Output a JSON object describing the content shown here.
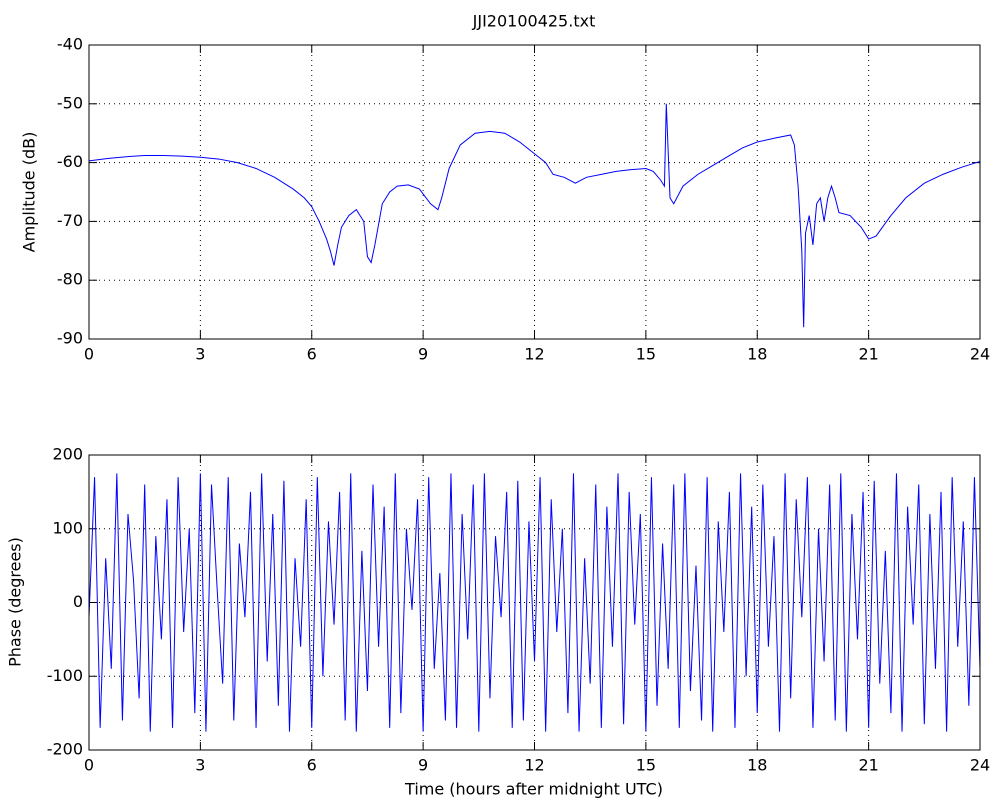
{
  "chart_data": [
    {
      "type": "line",
      "title": "JJI20100425.txt",
      "y_label": "Amplitude (dB)",
      "xlim": [
        0,
        24
      ],
      "xticks": [
        0,
        3,
        6,
        9,
        12,
        15,
        18,
        21,
        24
      ],
      "ylim": [
        -90,
        -40
      ],
      "yticks": [
        -90,
        -80,
        -70,
        -60,
        -50,
        -40
      ],
      "grid": true,
      "x": [
        0,
        0.5,
        1,
        1.5,
        2,
        2.5,
        3,
        3.5,
        4,
        4.5,
        5,
        5.5,
        5.8,
        6,
        6.2,
        6.4,
        6.5,
        6.6,
        6.7,
        6.8,
        7,
        7.2,
        7.4,
        7.5,
        7.6,
        7.7,
        7.9,
        8.1,
        8.3,
        8.6,
        8.9,
        9.2,
        9.4,
        9.5,
        9.7,
        10,
        10.4,
        10.8,
        11.2,
        11.6,
        12,
        12.3,
        12.5,
        12.8,
        13.1,
        13.4,
        13.8,
        14.2,
        14.6,
        15,
        15.2,
        15.4,
        15.5,
        15.55,
        15.6,
        15.65,
        15.75,
        16,
        16.4,
        16.8,
        17.2,
        17.6,
        18,
        18.5,
        18.9,
        19,
        19.1,
        19.2,
        19.25,
        19.3,
        19.4,
        19.5,
        19.6,
        19.7,
        19.8,
        19.9,
        20,
        20.1,
        20.2,
        20.5,
        20.8,
        21,
        21.2,
        21.6,
        22,
        22.5,
        23,
        23.5,
        24
      ],
      "series": [
        {
          "color": "#0000ff",
          "values": [
            -59.7,
            -59.3,
            -59,
            -58.8,
            -58.8,
            -58.9,
            -59.1,
            -59.4,
            -60,
            -61,
            -62.5,
            -64.5,
            -66,
            -67.5,
            -70,
            -73,
            -75,
            -77.5,
            -74,
            -71,
            -69,
            -68,
            -70,
            -76,
            -77,
            -74,
            -67,
            -65,
            -64,
            -63.8,
            -64.5,
            -67,
            -68,
            -66,
            -61,
            -57,
            -55,
            -54.7,
            -55,
            -56.5,
            -58.5,
            -60,
            -62,
            -62.5,
            -63.5,
            -62.5,
            -62,
            -61.5,
            -61.2,
            -61,
            -61.5,
            -63,
            -64,
            -50,
            -58,
            -66,
            -67,
            -64,
            -62,
            -60.5,
            -59,
            -57.5,
            -56.5,
            -55.8,
            -55.3,
            -57,
            -64,
            -75,
            -88,
            -72,
            -69,
            -74,
            -67,
            -66,
            -70,
            -66,
            -64,
            -66,
            -68.5,
            -69,
            -71,
            -73,
            -72.5,
            -69,
            -66,
            -63.5,
            -62,
            -60.8,
            -59.8
          ]
        }
      ]
    },
    {
      "type": "line",
      "x_label": "Time (hours after midnight UTC)",
      "y_label": "Phase (degrees)",
      "xlim": [
        0,
        24
      ],
      "xticks": [
        0,
        3,
        6,
        9,
        12,
        15,
        18,
        21,
        24
      ],
      "ylim": [
        -200,
        200
      ],
      "yticks": [
        -200,
        -100,
        0,
        100,
        200
      ],
      "grid": true,
      "x": [
        0,
        0.15,
        0.3,
        0.45,
        0.6,
        0.75,
        0.9,
        1.05,
        1.2,
        1.35,
        1.5,
        1.65,
        1.8,
        1.95,
        2.1,
        2.25,
        2.4,
        2.55,
        2.7,
        2.85,
        3,
        3.15,
        3.3,
        3.45,
        3.6,
        3.75,
        3.9,
        4.05,
        4.2,
        4.35,
        4.5,
        4.65,
        4.8,
        4.95,
        5.1,
        5.25,
        5.4,
        5.55,
        5.7,
        5.85,
        6,
        6.15,
        6.3,
        6.45,
        6.6,
        6.75,
        6.9,
        7.05,
        7.2,
        7.35,
        7.5,
        7.65,
        7.8,
        7.95,
        8.1,
        8.25,
        8.4,
        8.55,
        8.7,
        8.85,
        9,
        9.15,
        9.3,
        9.45,
        9.6,
        9.75,
        9.9,
        10.05,
        10.2,
        10.35,
        10.5,
        10.65,
        10.8,
        10.95,
        11.1,
        11.25,
        11.4,
        11.55,
        11.7,
        11.85,
        12,
        12.15,
        12.3,
        12.45,
        12.6,
        12.75,
        12.9,
        13.05,
        13.2,
        13.35,
        13.5,
        13.65,
        13.8,
        13.95,
        14.1,
        14.25,
        14.4,
        14.55,
        14.7,
        14.85,
        15,
        15.15,
        15.3,
        15.45,
        15.6,
        15.75,
        15.9,
        16.05,
        16.2,
        16.35,
        16.5,
        16.65,
        16.8,
        16.95,
        17.1,
        17.25,
        17.4,
        17.55,
        17.7,
        17.85,
        18,
        18.15,
        18.3,
        18.45,
        18.6,
        18.75,
        18.9,
        19.05,
        19.2,
        19.35,
        19.5,
        19.65,
        19.8,
        19.95,
        20.1,
        20.25,
        20.4,
        20.55,
        20.7,
        20.85,
        21,
        21.15,
        21.3,
        21.45,
        21.6,
        21.75,
        21.9,
        22.05,
        22.2,
        22.35,
        22.5,
        22.65,
        22.8,
        22.95,
        23.1,
        23.25,
        23.4,
        23.55,
        23.7,
        23.85,
        24
      ],
      "series": [
        {
          "color": "#0000ff",
          "values": [
            -20,
            170,
            -170,
            60,
            -90,
            175,
            -160,
            120,
            30,
            -130,
            160,
            -175,
            90,
            -50,
            140,
            -170,
            170,
            -40,
            100,
            -150,
            175,
            -175,
            160,
            20,
            -110,
            170,
            -160,
            80,
            -20,
            150,
            -170,
            175,
            -80,
            120,
            -140,
            165,
            -175,
            60,
            -60,
            140,
            -170,
            170,
            -100,
            110,
            -30,
            150,
            -160,
            175,
            -175,
            70,
            -120,
            160,
            -60,
            130,
            -170,
            175,
            -150,
            100,
            -10,
            140,
            -175,
            170,
            -90,
            40,
            -160,
            175,
            -170,
            120,
            -50,
            160,
            -175,
            175,
            -130,
            90,
            -20,
            150,
            -170,
            165,
            -160,
            110,
            -80,
            170,
            -175,
            140,
            -40,
            100,
            -150,
            175,
            -175,
            60,
            -110,
            160,
            -170,
            130,
            -60,
            175,
            -165,
            150,
            -30,
            120,
            -175,
            170,
            -140,
            80,
            -90,
            160,
            -170,
            175,
            -120,
            50,
            -160,
            170,
            -175,
            110,
            -40,
            150,
            -170,
            175,
            -100,
            130,
            -150,
            160,
            -60,
            90,
            -175,
            175,
            -130,
            140,
            -20,
            170,
            -170,
            100,
            -80,
            160,
            -160,
            175,
            -175,
            120,
            -50,
            150,
            -170,
            165,
            -110,
            70,
            -150,
            175,
            -175,
            130,
            -30,
            160,
            -165,
            120,
            -90,
            150,
            -175,
            170,
            -60,
            110,
            -140,
            170,
            -90
          ]
        }
      ]
    }
  ]
}
